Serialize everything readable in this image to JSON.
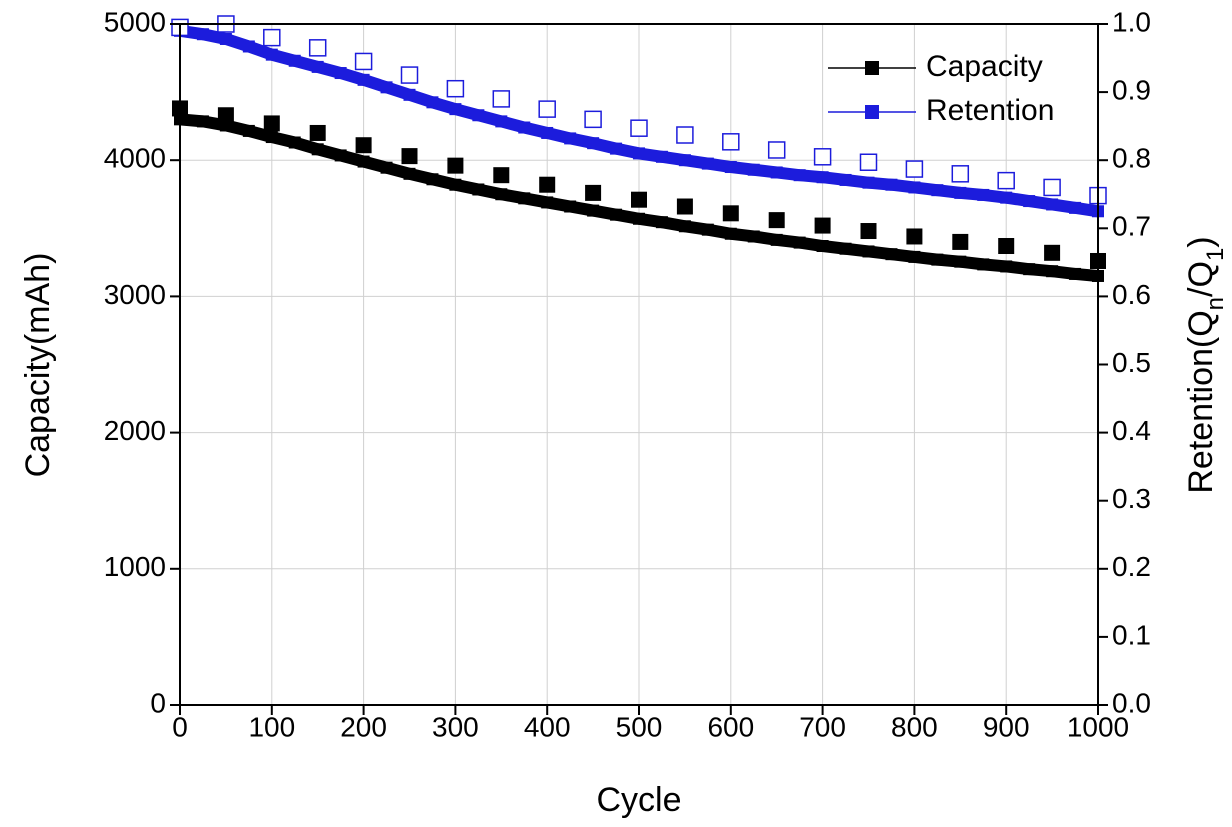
{
  "chart_data": {
    "type": "line",
    "xlabel": "Cycle",
    "ylabel": "Capacity(mAh)",
    "y2label": [
      "Retention(Q",
      "n",
      "/Q",
      "1",
      ")"
    ],
    "xlim": [
      0,
      1000
    ],
    "ylim": [
      0,
      5000
    ],
    "y2lim": [
      0,
      1
    ],
    "xticks": [
      0,
      100,
      200,
      300,
      400,
      500,
      600,
      700,
      800,
      900,
      1000
    ],
    "yticks": [
      0,
      1000,
      2000,
      3000,
      4000,
      5000
    ],
    "y2ticks": [
      {
        "value": 0,
        "label": "0.0"
      },
      0.1,
      0.2,
      0.3,
      0.4,
      0.5,
      0.6,
      0.7,
      0.8,
      0.9,
      {
        "value": 1,
        "label": "1.0"
      }
    ],
    "grid": true,
    "legend": "upper right",
    "series": [
      {
        "name": "Capacity",
        "color": "#000000",
        "marker": "filled",
        "x": [
          0,
          25,
          50,
          75,
          100,
          125,
          150,
          175,
          200,
          225,
          250,
          275,
          300,
          325,
          350,
          375,
          400,
          425,
          450,
          475,
          500,
          525,
          550,
          575,
          600,
          625,
          650,
          675,
          700,
          725,
          750,
          775,
          800,
          825,
          850,
          875,
          900,
          925,
          950,
          975,
          1000
        ],
        "values": [
          4300,
          4285,
          4255,
          4215,
          4170,
          4130,
          4080,
          4035,
          3990,
          3945,
          3900,
          3860,
          3820,
          3785,
          3750,
          3720,
          3690,
          3660,
          3630,
          3600,
          3570,
          3545,
          3515,
          3490,
          3460,
          3440,
          3415,
          3395,
          3370,
          3350,
          3330,
          3310,
          3290,
          3270,
          3255,
          3235,
          3220,
          3200,
          3185,
          3165,
          3150
        ]
      },
      {
        "name": "Retention",
        "color": "#1c1cdc",
        "marker": "filled",
        "axis": "y2",
        "x": [
          0,
          25,
          50,
          75,
          100,
          125,
          150,
          175,
          200,
          225,
          250,
          275,
          300,
          325,
          350,
          375,
          400,
          425,
          450,
          475,
          500,
          525,
          550,
          575,
          600,
          625,
          650,
          675,
          700,
          725,
          750,
          775,
          800,
          825,
          850,
          875,
          900,
          925,
          950,
          975,
          1000
        ],
        "values": [
          0.99,
          0.985,
          0.978,
          0.967,
          0.955,
          0.946,
          0.937,
          0.928,
          0.918,
          0.907,
          0.896,
          0.885,
          0.875,
          0.866,
          0.857,
          0.848,
          0.84,
          0.832,
          0.825,
          0.817,
          0.81,
          0.805,
          0.8,
          0.795,
          0.79,
          0.786,
          0.782,
          0.778,
          0.775,
          0.771,
          0.767,
          0.764,
          0.76,
          0.756,
          0.752,
          0.749,
          0.745,
          0.74,
          0.735,
          0.73,
          0.725
        ]
      },
      {
        "color": "#000000",
        "marker": "filled",
        "x": [
          0,
          50,
          100,
          150,
          200,
          250,
          300,
          350,
          400,
          450,
          500,
          550,
          600,
          650,
          700,
          750,
          800,
          850,
          900,
          950,
          1000
        ],
        "values": [
          4380,
          4330,
          4270,
          4200,
          4110,
          4030,
          3960,
          3890,
          3820,
          3760,
          3710,
          3660,
          3610,
          3560,
          3520,
          3480,
          3440,
          3400,
          3370,
          3320,
          3260
        ]
      },
      {
        "color": "#1c1cdc",
        "marker": "open",
        "axis": "y2",
        "x": [
          0,
          50,
          100,
          150,
          200,
          250,
          300,
          350,
          400,
          450,
          500,
          550,
          600,
          650,
          700,
          750,
          800,
          850,
          900,
          950,
          1000
        ],
        "values": [
          0.995,
          1.0,
          0.98,
          0.965,
          0.945,
          0.925,
          0.905,
          0.89,
          0.875,
          0.86,
          0.847,
          0.837,
          0.827,
          0.815,
          0.805,
          0.797,
          0.787,
          0.78,
          0.77,
          0.76,
          0.748
        ]
      }
    ]
  }
}
